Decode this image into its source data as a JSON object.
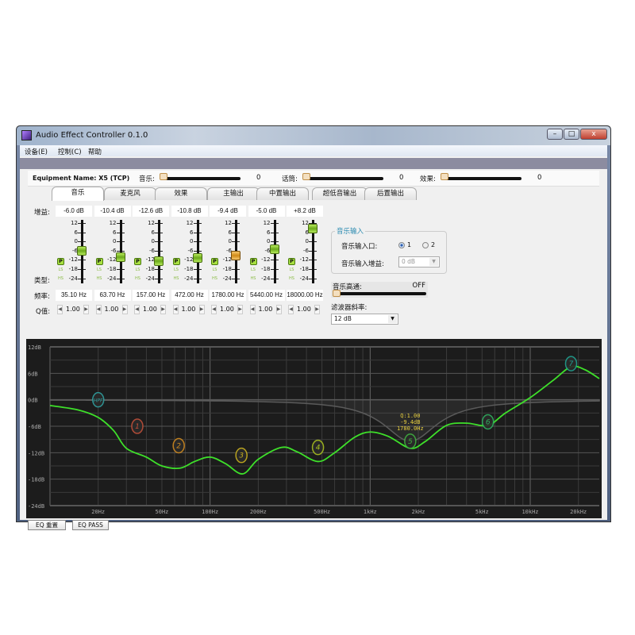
{
  "window": {
    "title": "Audio Effect Controller 0.1.0",
    "controls": [
      "–",
      "□",
      "x"
    ]
  },
  "menu": [
    "设备(E)",
    "控制(C)",
    "帮助"
  ],
  "top": {
    "equipment": "Equipment Name: X5 (TCP)",
    "sliders": [
      {
        "label": "音乐:",
        "value": "0",
        "level": 0
      },
      {
        "label": "话筒:",
        "value": "0",
        "level": 0
      },
      {
        "label": "效果:",
        "value": "0",
        "level": 0
      }
    ]
  },
  "tabs": [
    "音乐",
    "麦克风",
    "效果",
    "主输出",
    "中置输出",
    "超低音输出",
    "后置输出"
  ],
  "active_tab": 0,
  "labels": {
    "gain": "增益:",
    "type": "类型:",
    "freq": "频率:",
    "q": "Q值:"
  },
  "fader_ticks": [
    "12",
    "6",
    "0",
    "-6",
    "-12",
    "-18",
    "-24"
  ],
  "type_buttons": [
    "P",
    "LS",
    "HS"
  ],
  "bands": [
    {
      "gain": "-6.0 dB",
      "gain_db": -6.0,
      "freq": "35.10 Hz",
      "freq_hz": 35.1,
      "q": "1.00",
      "color": "#c0503a"
    },
    {
      "gain": "-10.4 dB",
      "gain_db": -10.4,
      "freq": "63.70 Hz",
      "freq_hz": 63.7,
      "q": "1.00",
      "color": "#d08a20"
    },
    {
      "gain": "-12.6 dB",
      "gain_db": -12.6,
      "freq": "157.00 Hz",
      "freq_hz": 157,
      "q": "1.00",
      "color": "#c8b020"
    },
    {
      "gain": "-10.8 dB",
      "gain_db": -10.8,
      "freq": "472.00 Hz",
      "freq_hz": 472,
      "q": "1.00",
      "color": "#a8c020"
    },
    {
      "gain": "-9.4 dB",
      "gain_db": -9.4,
      "freq": "1780.00 Hz",
      "freq_hz": 1780,
      "q": "1.00",
      "color": "#40b040",
      "selected": true
    },
    {
      "gain": "-5.0 dB",
      "gain_db": -5.0,
      "freq": "5440.00 Hz",
      "freq_hz": 5440,
      "q": "1.00",
      "color": "#30b060"
    },
    {
      "gain": "+8.2 dB",
      "gain_db": 8.2,
      "freq": "18000.00 Hz",
      "freq_hz": 18000,
      "q": "1.00",
      "color": "#20a090"
    }
  ],
  "music_input": {
    "group": "音乐输入",
    "port_label": "音乐输入口:",
    "ports": [
      "1",
      "2"
    ],
    "selected_port": "1",
    "gain_label": "音乐输入增益:",
    "gain_value": "0 dB"
  },
  "highpass": {
    "label": "音乐高通:",
    "value": "OFF",
    "filter_label": "滤波器斜率:",
    "filter_value": "12 dB"
  },
  "chart_data": {
    "type": "line",
    "x_scale": "log",
    "xlim": [
      10,
      27000
    ],
    "ylim": [
      -24,
      12
    ],
    "y_ticks": [
      "12dB",
      "6dB",
      "0dB",
      "-6dB",
      "-12dB",
      "-18dB",
      "-24dB"
    ],
    "y_tick_values": [
      12,
      6,
      0,
      -6,
      -12,
      -18,
      -24
    ],
    "x_ticks": [
      "20Hz",
      "50Hz",
      "100Hz",
      "200Hz",
      "500Hz",
      "1kHz",
      "2kHz",
      "5kHz",
      "10kHz",
      "20kHz"
    ],
    "x_tick_values": [
      20,
      50,
      100,
      200,
      500,
      1000,
      2000,
      5000,
      10000,
      20000
    ],
    "grid": true,
    "series": [
      {
        "color": "#3ee02a",
        "points": [
          [
            10,
            -1.3
          ],
          [
            15,
            -2.3
          ],
          [
            20,
            -4
          ],
          [
            25,
            -7
          ],
          [
            30,
            -11
          ],
          [
            40,
            -13
          ],
          [
            50,
            -15
          ],
          [
            65,
            -15.5
          ],
          [
            80,
            -14
          ],
          [
            100,
            -13
          ],
          [
            125,
            -14.5
          ],
          [
            160,
            -16.8
          ],
          [
            200,
            -13.5
          ],
          [
            280,
            -10.8
          ],
          [
            350,
            -11.8
          ],
          [
            472,
            -14
          ],
          [
            600,
            -12
          ],
          [
            800,
            -8.5
          ],
          [
            1000,
            -7.3
          ],
          [
            1300,
            -8.3
          ],
          [
            1780,
            -11
          ],
          [
            2200,
            -9.5
          ],
          [
            3000,
            -5.8
          ],
          [
            4000,
            -5.3
          ],
          [
            5440,
            -5.8
          ],
          [
            7000,
            -3
          ],
          [
            10000,
            0.5
          ],
          [
            14000,
            4.5
          ],
          [
            18000,
            7.5
          ],
          [
            22000,
            6.8
          ],
          [
            27000,
            4.8
          ]
        ]
      }
    ],
    "hpf_marker": {
      "label": "HPF",
      "freq_hz": 20,
      "gain_db": 0
    },
    "tooltip": [
      "Q:1.00",
      "-9.4dB",
      "1780.0Hz"
    ]
  },
  "buttons": {
    "reset": "EQ 重置",
    "pass": "EQ PASS"
  }
}
